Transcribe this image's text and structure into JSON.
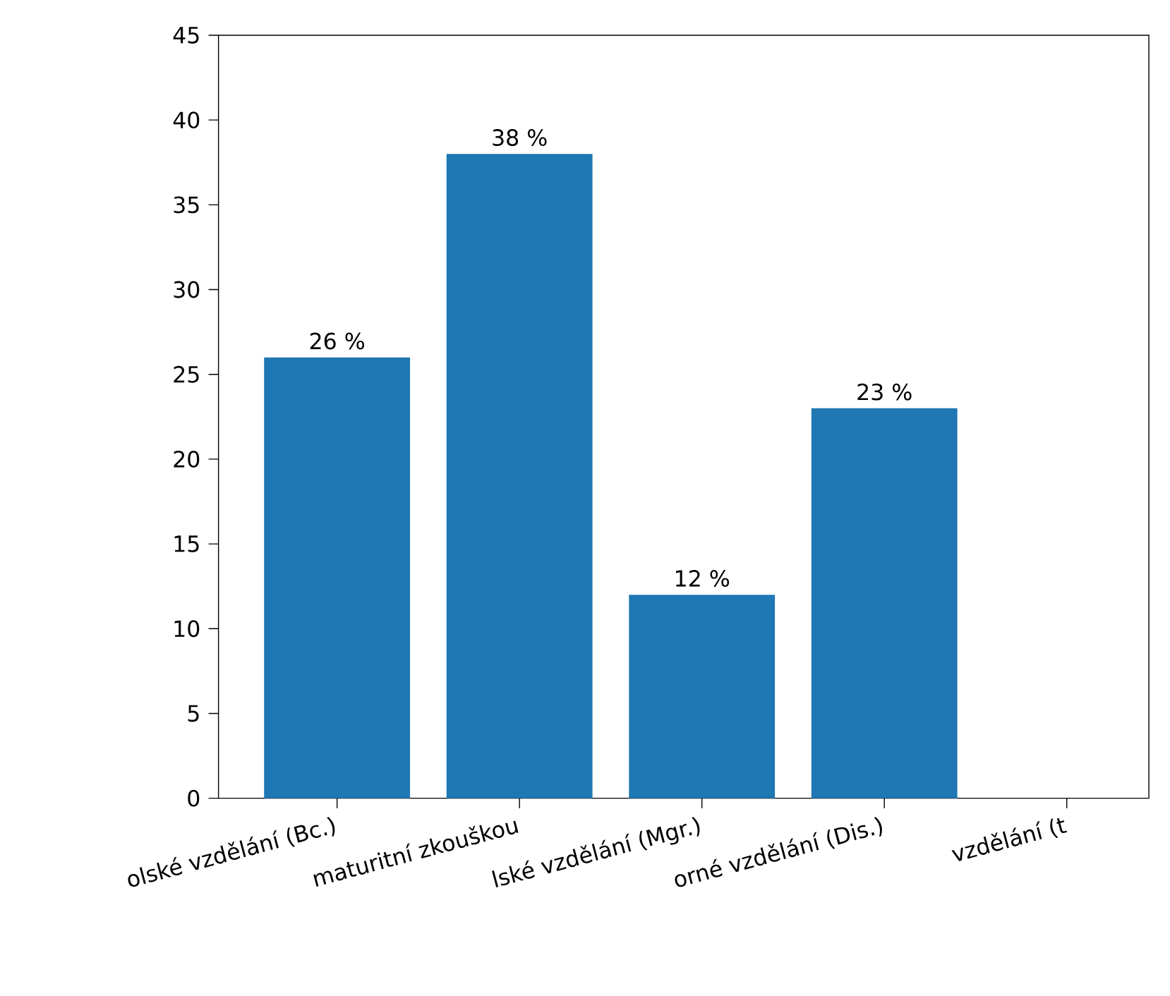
{
  "chart_data": {
    "type": "bar",
    "categories": [
      "olské vzdělání (Bc.)",
      "maturitní zkouškou",
      "lské vzdělání (Mgr.)",
      "orné vzdělání (Dis.)",
      "vzdělání (t"
    ],
    "values": [
      26,
      38,
      12,
      23,
      null
    ],
    "value_labels": [
      "26 %",
      "38 %",
      "12 %",
      "23 %",
      null
    ],
    "color": "#1f77b4",
    "ylim": [
      0,
      45
    ],
    "yticks": [
      0,
      5,
      10,
      15,
      20,
      25,
      30,
      35,
      40,
      45
    ]
  }
}
